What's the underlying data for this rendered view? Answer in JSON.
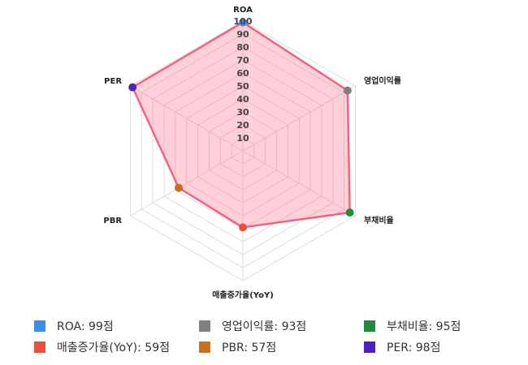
{
  "chart_data": {
    "type": "radar",
    "categories": [
      "ROA",
      "영업이익률",
      "부채비율",
      "매출증가율(YoY)",
      "PBR",
      "PER"
    ],
    "values": [
      99,
      93,
      95,
      59,
      57,
      98
    ],
    "colors": [
      "#3b8ee8",
      "#808080",
      "#1e8c3a",
      "#e8513a",
      "#c87020",
      "#5020c0"
    ],
    "legend_labels": [
      "ROA: 99점",
      "영업이익률: 93점",
      "부채비율: 95점",
      "매출증가율(YoY): 59점",
      "PBR: 57점",
      "PER: 98점"
    ],
    "line_color": "#f0647e",
    "fill_color": "rgba(255,99,132,0.3)",
    "rlim": [
      0,
      100
    ],
    "rticks": [
      10,
      20,
      30,
      40,
      50,
      60,
      70,
      80,
      90,
      100
    ],
    "grid": true
  }
}
